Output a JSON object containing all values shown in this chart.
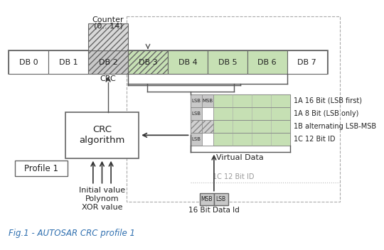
{
  "title": "Fig.1 - AUTOSAR CRC profile 1",
  "title_color": "#3070b0",
  "bg_color": "#ffffff",
  "db_boxes": [
    "DB 0",
    "DB 1",
    "DB 2",
    "DB 3",
    "DB 4",
    "DB 5",
    "DB 6",
    "DB 7"
  ],
  "green_fill": "#c6e0b4",
  "white_fill": "#ffffff",
  "gray_box_fill": "#c8c8c8",
  "box_edge": "#666666",
  "row_labels": [
    "1A 16 Bit (LSB first)",
    "1A 8 Bit (LSB only)",
    "1B alternating LSB-MSB",
    "1C 12 Bit ID"
  ],
  "row_lsb_labels": [
    "LSB",
    "LSB",
    "",
    "LSB"
  ],
  "row_msb_labels": [
    "MSB",
    "",
    "",
    ""
  ],
  "row_hatch": [
    false,
    false,
    true,
    false
  ]
}
